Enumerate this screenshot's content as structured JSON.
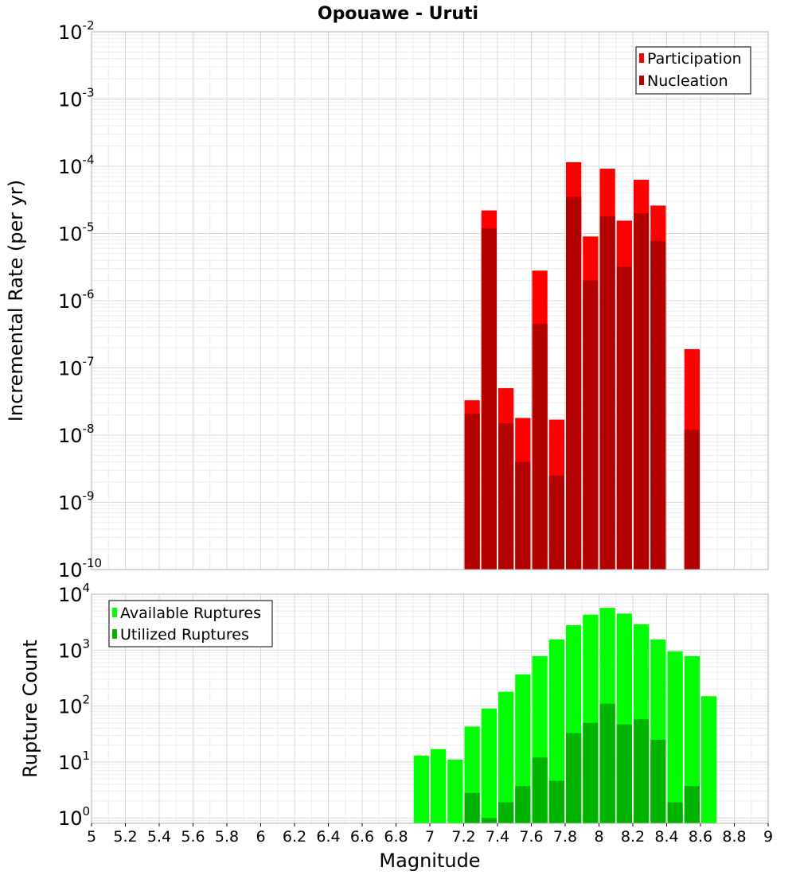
{
  "chart_data": [
    {
      "type": "bar",
      "title": "Opouawe - Uruti",
      "ylabel": "Incremental Rate (per yr)",
      "xlabel": "",
      "xlim": [
        5,
        9
      ],
      "ylim": [
        1e-10,
        0.01
      ],
      "yscale": "log",
      "y_tick_exponents": [
        "-2",
        "-3",
        "-4",
        "-5",
        "-6",
        "-7",
        "-8",
        "-9",
        "-10"
      ],
      "legend": {
        "position": "top-right",
        "entries": [
          "Participation",
          "Nucleation"
        ]
      },
      "colors": {
        "Participation": "#ff0000",
        "Nucleation": "#b30000"
      },
      "x": [
        7.25,
        7.35,
        7.45,
        7.55,
        7.65,
        7.75,
        7.85,
        7.95,
        8.05,
        8.15,
        8.25,
        8.35,
        8.45,
        8.55
      ],
      "series": [
        {
          "name": "Participation",
          "values": [
            3.3e-08,
            2.2e-05,
            5e-08,
            1.8e-08,
            2.8e-06,
            1.7e-08,
            0.000115,
            9e-06,
            9.2e-05,
            1.55e-05,
            6.3e-05,
            2.6e-05,
            1e-10,
            1.9e-07
          ]
        },
        {
          "name": "Nucleation",
          "values": [
            2.1e-08,
            1.2e-05,
            1.5e-08,
            4e-09,
            4.5e-07,
            2.5e-09,
            3.5e-05,
            2e-06,
            1.8e-05,
            3.2e-06,
            2e-05,
            7.8e-06,
            1e-10,
            1.2e-08
          ]
        }
      ]
    },
    {
      "type": "bar",
      "title": "",
      "ylabel": "Rupture Count",
      "xlabel": "Magnitude",
      "xlim": [
        5,
        9
      ],
      "ylim": [
        0.8,
        10000
      ],
      "yscale": "log",
      "y_tick_exponents": [
        "4",
        "3",
        "2",
        "1",
        "0"
      ],
      "x_ticks": [
        "5",
        "5.2",
        "5.4",
        "5.6",
        "5.8",
        "6",
        "6.2",
        "6.4",
        "6.6",
        "6.8",
        "7",
        "7.2",
        "7.4",
        "7.6",
        "7.8",
        "8",
        "8.2",
        "8.4",
        "8.6",
        "8.8",
        "9"
      ],
      "legend": {
        "position": "top-left",
        "entries": [
          "Available Ruptures",
          "Utilized Ruptures"
        ]
      },
      "colors": {
        "Available Ruptures": "#00ff00",
        "Utilized Ruptures": "#00b300"
      },
      "x": [
        6.95,
        7.05,
        7.15,
        7.25,
        7.35,
        7.45,
        7.55,
        7.65,
        7.75,
        7.85,
        7.95,
        8.05,
        8.15,
        8.25,
        8.35,
        8.45,
        8.55,
        8.65
      ],
      "series": [
        {
          "name": "Available Ruptures",
          "values": [
            13,
            17,
            11,
            43,
            90,
            180,
            370,
            780,
            1550,
            2800,
            4300,
            5700,
            4500,
            2900,
            1550,
            950,
            780,
            150
          ]
        },
        {
          "name": "Utilized Ruptures",
          "values": [
            0,
            0,
            0,
            2.8,
            1,
            1.9,
            3.7,
            12,
            4.6,
            33,
            50,
            110,
            47,
            58,
            25,
            1.9,
            3.7,
            0
          ]
        }
      ]
    }
  ]
}
